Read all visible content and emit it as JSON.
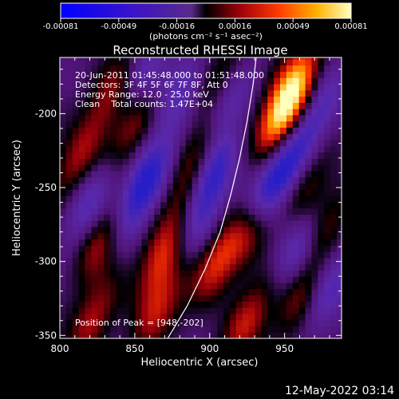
{
  "chart_data": {
    "type": "heatmap",
    "title": "Reconstructed RHESSI Image",
    "xlabel": "Heliocentric X (arcsec)",
    "ylabel": "Heliocentric Y (arcsec)",
    "xlim": [
      800,
      988
    ],
    "ylim": [
      -352,
      -162
    ],
    "x_ticks": [
      800,
      850,
      900,
      950
    ],
    "y_ticks": [
      -200,
      -250,
      -300,
      -350
    ],
    "colorbar": {
      "unit_label": "(photons cm⁻² s⁻¹ asec⁻²)",
      "range": [
        -0.00081,
        0.00081
      ],
      "ticks": [
        "-0.00081",
        "-0.00049",
        "-0.00016",
        "0.00016",
        "0.00049",
        "0.00081"
      ]
    },
    "annotations": [
      "20-Jun-2011 01:45:48.000 to 01:51:48.000",
      "Detectors: 3F 4F 5F 6F 7F 8F, Att 0",
      "Energy Range: 12.0 - 25.0 keV",
      "Clean    Total counts: 1.47E+04"
    ],
    "peak_label": "Position of Peak = [948,-202]",
    "peak": [
      948,
      -202
    ],
    "limb_points": [
      [
        872,
        -352
      ],
      [
        885,
        -330
      ],
      [
        897,
        -305
      ],
      [
        907,
        -280
      ],
      [
        914,
        -255
      ],
      [
        920,
        -230
      ],
      [
        925,
        -205
      ],
      [
        929,
        -180
      ],
      [
        931,
        -162
      ]
    ],
    "blobs": [
      {
        "x": 948,
        "y": -202,
        "v": 1.0
      },
      {
        "x": 958,
        "y": -177,
        "v": 0.7
      },
      {
        "x": 868,
        "y": -298,
        "v": 0.62
      },
      {
        "x": 828,
        "y": -285,
        "v": 0.6
      },
      {
        "x": 905,
        "y": -300,
        "v": 0.6
      },
      {
        "x": 897,
        "y": -220,
        "v": 0.55
      },
      {
        "x": 928,
        "y": -278,
        "v": 0.5
      },
      {
        "x": 848,
        "y": -208,
        "v": 0.5
      },
      {
        "x": 812,
        "y": -232,
        "v": 0.5
      },
      {
        "x": 835,
        "y": -185,
        "v": 0.45
      },
      {
        "x": 866,
        "y": -332,
        "v": 0.5
      },
      {
        "x": 822,
        "y": -340,
        "v": 0.5
      },
      {
        "x": 925,
        "y": -340,
        "v": 0.55
      },
      {
        "x": 960,
        "y": -325,
        "v": 0.45
      },
      {
        "x": 965,
        "y": -250,
        "v": 0.4
      },
      {
        "x": 885,
        "y": -255,
        "v": 0.45
      },
      {
        "x": 908,
        "y": -176,
        "v": 0.4
      },
      {
        "x": 975,
        "y": -278,
        "v": 0.4
      },
      {
        "x": 900,
        "y": -240,
        "v": -0.9
      },
      {
        "x": 940,
        "y": -250,
        "v": -0.75
      },
      {
        "x": 910,
        "y": -195,
        "v": -0.6
      },
      {
        "x": 820,
        "y": -260,
        "v": -0.55
      },
      {
        "x": 860,
        "y": -240,
        "v": -0.55
      },
      {
        "x": 848,
        "y": -265,
        "v": -0.5
      },
      {
        "x": 960,
        "y": -290,
        "v": -0.6
      },
      {
        "x": 880,
        "y": -185,
        "v": -0.45
      },
      {
        "x": 955,
        "y": -230,
        "v": -0.5
      },
      {
        "x": 855,
        "y": -175,
        "v": -0.45
      },
      {
        "x": 975,
        "y": -195,
        "v": -0.45
      },
      {
        "x": 980,
        "y": -320,
        "v": -0.5
      },
      {
        "x": 892,
        "y": -275,
        "v": -0.4
      }
    ]
  },
  "footer": {
    "timestamp": "12-May-2022 03:14"
  }
}
